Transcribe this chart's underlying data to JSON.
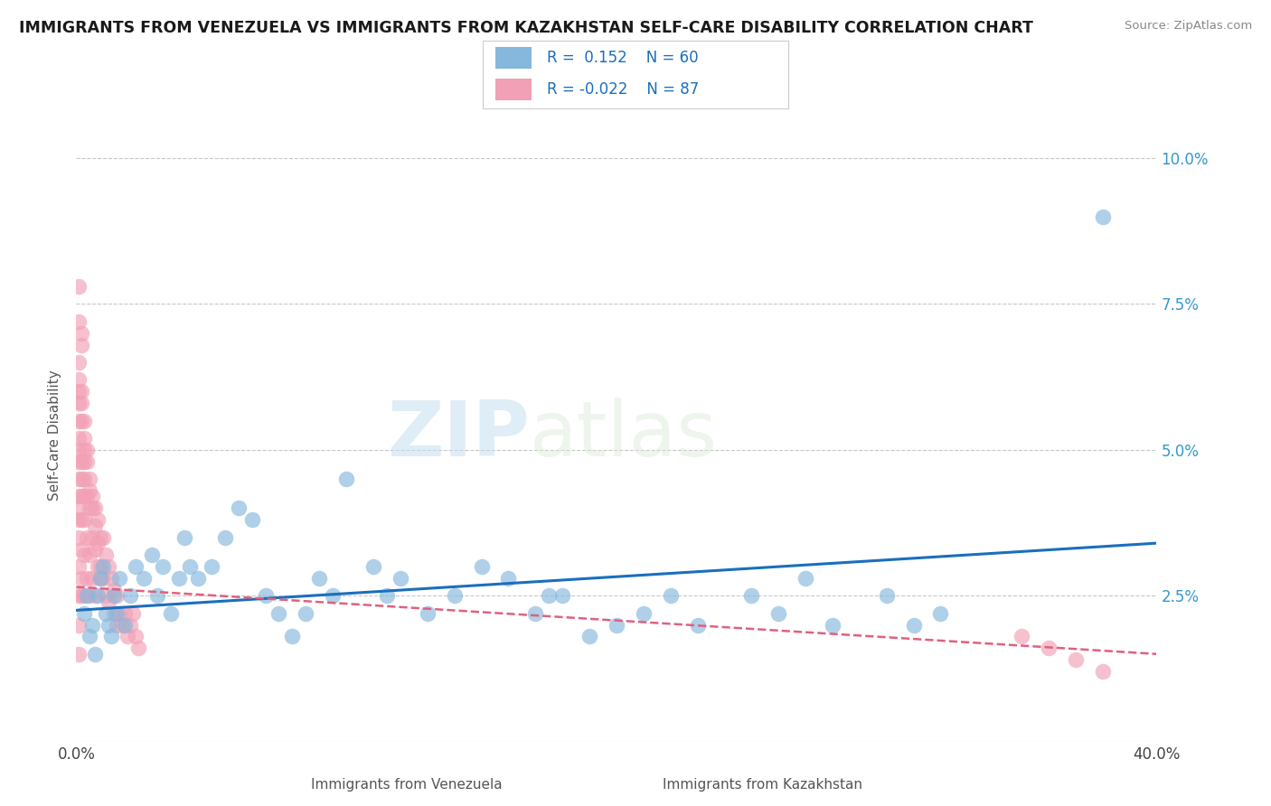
{
  "title": "IMMIGRANTS FROM VENEZUELA VS IMMIGRANTS FROM KAZAKHSTAN SELF-CARE DISABILITY CORRELATION CHART",
  "source": "Source: ZipAtlas.com",
  "xlabel_venezuela": "Immigrants from Venezuela",
  "xlabel_kazakhstan": "Immigrants from Kazakhstan",
  "ylabel": "Self-Care Disability",
  "xlim": [
    0.0,
    0.4
  ],
  "ylim": [
    0.0,
    0.105
  ],
  "xticks": [
    0.0,
    0.05,
    0.1,
    0.15,
    0.2,
    0.25,
    0.3,
    0.35,
    0.4
  ],
  "xticklabels": [
    "0.0%",
    "",
    "",
    "",
    "",
    "",
    "",
    "",
    "40.0%"
  ],
  "yticks": [
    0.0,
    0.025,
    0.05,
    0.075,
    0.1
  ],
  "yticklabels_right": [
    "",
    "2.5%",
    "5.0%",
    "7.5%",
    "10.0%"
  ],
  "R_venezuela": 0.152,
  "N_venezuela": 60,
  "R_kazakhstan": -0.022,
  "N_kazakhstan": 87,
  "venezuela_color": "#85b8dc",
  "kazakhstan_color": "#f2a0b5",
  "trend_venezuela_color": "#1a6fbd",
  "trend_kazakhstan_color": "#e06080",
  "background_color": "#ffffff",
  "grid_color": "#c8c8c8",
  "watermark_zip": "ZIP",
  "watermark_atlas": "atlas",
  "venezuela_x": [
    0.003,
    0.004,
    0.005,
    0.006,
    0.007,
    0.008,
    0.009,
    0.01,
    0.011,
    0.012,
    0.013,
    0.014,
    0.015,
    0.016,
    0.018,
    0.02,
    0.022,
    0.025,
    0.028,
    0.03,
    0.032,
    0.035,
    0.038,
    0.04,
    0.042,
    0.045,
    0.05,
    0.055,
    0.06,
    0.065,
    0.07,
    0.075,
    0.08,
    0.085,
    0.09,
    0.095,
    0.1,
    0.11,
    0.115,
    0.12,
    0.13,
    0.14,
    0.15,
    0.16,
    0.17,
    0.18,
    0.19,
    0.2,
    0.21,
    0.22,
    0.23,
    0.25,
    0.26,
    0.27,
    0.28,
    0.3,
    0.31,
    0.32,
    0.38,
    0.175
  ],
  "venezuela_y": [
    0.022,
    0.025,
    0.018,
    0.02,
    0.015,
    0.025,
    0.028,
    0.03,
    0.022,
    0.02,
    0.018,
    0.025,
    0.022,
    0.028,
    0.02,
    0.025,
    0.03,
    0.028,
    0.032,
    0.025,
    0.03,
    0.022,
    0.028,
    0.035,
    0.03,
    0.028,
    0.03,
    0.035,
    0.04,
    0.038,
    0.025,
    0.022,
    0.018,
    0.022,
    0.028,
    0.025,
    0.045,
    0.03,
    0.025,
    0.028,
    0.022,
    0.025,
    0.03,
    0.028,
    0.022,
    0.025,
    0.018,
    0.02,
    0.022,
    0.025,
    0.02,
    0.025,
    0.022,
    0.028,
    0.02,
    0.025,
    0.02,
    0.022,
    0.09,
    0.025
  ],
  "kazakhstan_x": [
    0.001,
    0.001,
    0.001,
    0.001,
    0.001,
    0.001,
    0.001,
    0.001,
    0.001,
    0.001,
    0.001,
    0.001,
    0.002,
    0.002,
    0.002,
    0.002,
    0.002,
    0.002,
    0.002,
    0.002,
    0.003,
    0.003,
    0.003,
    0.003,
    0.003,
    0.003,
    0.004,
    0.004,
    0.004,
    0.004,
    0.005,
    0.005,
    0.005,
    0.005,
    0.006,
    0.006,
    0.006,
    0.007,
    0.007,
    0.007,
    0.008,
    0.008,
    0.009,
    0.009,
    0.01,
    0.01,
    0.011,
    0.011,
    0.012,
    0.012,
    0.013,
    0.014,
    0.014,
    0.015,
    0.015,
    0.016,
    0.017,
    0.018,
    0.019,
    0.02,
    0.021,
    0.022,
    0.023,
    0.001,
    0.001,
    0.001,
    0.002,
    0.002,
    0.003,
    0.003,
    0.004,
    0.005,
    0.006,
    0.007,
    0.008,
    0.009,
    0.35,
    0.36,
    0.37,
    0.38,
    0.001,
    0.001,
    0.001,
    0.001,
    0.002,
    0.002,
    0.003
  ],
  "kazakhstan_y": [
    0.06,
    0.055,
    0.05,
    0.045,
    0.04,
    0.035,
    0.03,
    0.025,
    0.062,
    0.058,
    0.042,
    0.038,
    0.068,
    0.058,
    0.048,
    0.042,
    0.038,
    0.033,
    0.028,
    0.025,
    0.055,
    0.048,
    0.042,
    0.038,
    0.032,
    0.025,
    0.048,
    0.042,
    0.035,
    0.028,
    0.045,
    0.04,
    0.032,
    0.025,
    0.042,
    0.035,
    0.028,
    0.04,
    0.033,
    0.025,
    0.038,
    0.03,
    0.035,
    0.028,
    0.035,
    0.028,
    0.032,
    0.025,
    0.03,
    0.024,
    0.028,
    0.026,
    0.022,
    0.025,
    0.02,
    0.022,
    0.02,
    0.022,
    0.018,
    0.02,
    0.022,
    0.018,
    0.016,
    0.072,
    0.065,
    0.078,
    0.07,
    0.06,
    0.052,
    0.045,
    0.05,
    0.043,
    0.04,
    0.037,
    0.034,
    0.03,
    0.018,
    0.016,
    0.014,
    0.012,
    0.02,
    0.015,
    0.052,
    0.048,
    0.055,
    0.045,
    0.05
  ],
  "trend_ven_x0": 0.0,
  "trend_ven_y0": 0.0225,
  "trend_ven_x1": 0.4,
  "trend_ven_y1": 0.034,
  "trend_kaz_x0": 0.0,
  "trend_kaz_y0": 0.0265,
  "trend_kaz_x1": 0.4,
  "trend_kaz_y1": 0.015
}
